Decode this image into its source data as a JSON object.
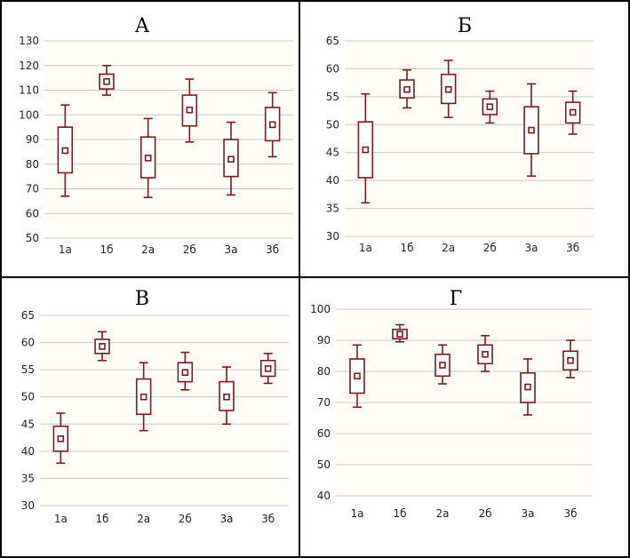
{
  "colors": {
    "box": "#7a1a1a",
    "grid": "#c8c8c8",
    "plot_background": "#fffdf4",
    "frame": "#000000"
  },
  "chart_data": [
    {
      "type": "box",
      "title": "А",
      "categories": [
        "1а",
        "1б",
        "2а",
        "2б",
        "3а",
        "3б"
      ],
      "yticks": [
        50,
        60,
        70,
        80,
        90,
        100,
        110,
        120,
        130
      ],
      "ylim": [
        50,
        130
      ],
      "grid": true,
      "boxes": [
        {
          "whisker_low": 67,
          "q1": 76.5,
          "center": 85.5,
          "q3": 95,
          "whisker_high": 104
        },
        {
          "whisker_low": 108,
          "q1": 110.5,
          "center": 113.5,
          "q3": 116.5,
          "whisker_high": 120
        },
        {
          "whisker_low": 66.5,
          "q1": 74.5,
          "center": 82.5,
          "q3": 91,
          "whisker_high": 98.5
        },
        {
          "whisker_low": 89,
          "q1": 95.5,
          "center": 102,
          "q3": 108,
          "whisker_high": 114.5
        },
        {
          "whisker_low": 67.5,
          "q1": 75,
          "center": 82,
          "q3": 90,
          "whisker_high": 97
        },
        {
          "whisker_low": 83,
          "q1": 89.5,
          "center": 96,
          "q3": 103,
          "whisker_high": 109
        }
      ]
    },
    {
      "type": "box",
      "title": "Б",
      "categories": [
        "1а",
        "1б",
        "2а",
        "2б",
        "3а",
        "3б"
      ],
      "yticks": [
        30,
        35,
        40,
        45,
        50,
        55,
        60,
        65
      ],
      "ylim": [
        30,
        65
      ],
      "grid": true,
      "boxes": [
        {
          "whisker_low": 36,
          "q1": 40.5,
          "center": 45.5,
          "q3": 50.5,
          "whisker_high": 55.5
        },
        {
          "whisker_low": 53,
          "q1": 54.8,
          "center": 56.3,
          "q3": 58,
          "whisker_high": 59.8
        },
        {
          "whisker_low": 51.3,
          "q1": 53.8,
          "center": 56.3,
          "q3": 59,
          "whisker_high": 61.5
        },
        {
          "whisker_low": 50.3,
          "q1": 51.8,
          "center": 53.2,
          "q3": 54.6,
          "whisker_high": 56
        },
        {
          "whisker_low": 40.8,
          "q1": 44.8,
          "center": 49,
          "q3": 53.2,
          "whisker_high": 57.3
        },
        {
          "whisker_low": 48.3,
          "q1": 50.3,
          "center": 52.2,
          "q3": 54,
          "whisker_high": 56
        }
      ]
    },
    {
      "type": "box",
      "title": "В",
      "categories": [
        "1а",
        "1б",
        "2а",
        "2б",
        "3а",
        "3б"
      ],
      "yticks": [
        30,
        35,
        40,
        45,
        50,
        55,
        60,
        65
      ],
      "ylim": [
        30,
        65
      ],
      "grid": true,
      "boxes": [
        {
          "whisker_low": 37.8,
          "q1": 40,
          "center": 42.3,
          "q3": 44.6,
          "whisker_high": 47
        },
        {
          "whisker_low": 56.7,
          "q1": 58,
          "center": 59.3,
          "q3": 60.6,
          "whisker_high": 62
        },
        {
          "whisker_low": 43.8,
          "q1": 46.8,
          "center": 50,
          "q3": 53.3,
          "whisker_high": 56.3
        },
        {
          "whisker_low": 51.3,
          "q1": 52.8,
          "center": 54.5,
          "q3": 56.3,
          "whisker_high": 58.2
        },
        {
          "whisker_low": 45,
          "q1": 47.5,
          "center": 50,
          "q3": 52.8,
          "whisker_high": 55.5
        },
        {
          "whisker_low": 52.5,
          "q1": 53.8,
          "center": 55.2,
          "q3": 56.7,
          "whisker_high": 58
        }
      ]
    },
    {
      "type": "box",
      "title": "Г",
      "categories": [
        "1а",
        "1б",
        "2а",
        "2б",
        "3а",
        "3б"
      ],
      "yticks": [
        40,
        50,
        60,
        70,
        80,
        90,
        100
      ],
      "ylim": [
        40,
        100
      ],
      "grid": true,
      "boxes": [
        {
          "whisker_low": 68.5,
          "q1": 73,
          "center": 78.5,
          "q3": 84,
          "whisker_high": 88.5
        },
        {
          "whisker_low": 89.5,
          "q1": 90.5,
          "center": 92,
          "q3": 93.5,
          "whisker_high": 95
        },
        {
          "whisker_low": 76,
          "q1": 78.5,
          "center": 82,
          "q3": 85.5,
          "whisker_high": 88.5
        },
        {
          "whisker_low": 80,
          "q1": 82.5,
          "center": 85.5,
          "q3": 88.5,
          "whisker_high": 91.5
        },
        {
          "whisker_low": 66,
          "q1": 70,
          "center": 75,
          "q3": 79.5,
          "whisker_high": 84
        },
        {
          "whisker_low": 78,
          "q1": 80.5,
          "center": 83.5,
          "q3": 86.5,
          "whisker_high": 90
        }
      ]
    }
  ]
}
